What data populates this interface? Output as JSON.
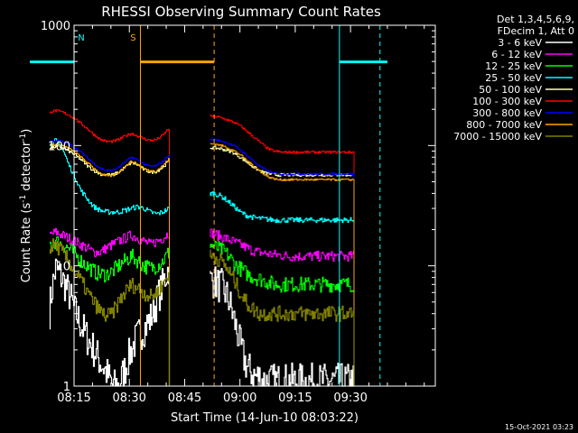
{
  "chart_data": {
    "type": "line",
    "title": "RHESSI Observing Summary Count Rates",
    "xlabel": "Start Time (14-Jun-10 08:03:22)",
    "ylabel_parts": [
      "Count Rate (s",
      "-1",
      " detector",
      "-1",
      ")"
    ],
    "yscale": "log",
    "ylim": [
      1,
      1000
    ],
    "y_ticks": [
      1,
      10,
      100,
      1000
    ],
    "y_tick_labels": [
      "1",
      "10",
      "100",
      "1000"
    ],
    "xlim_min": [
      495,
      593
    ],
    "x_ticks_min": [
      495,
      510,
      525,
      540,
      555,
      570
    ],
    "x_tick_labels": [
      "08:15",
      "08:30",
      "08:45",
      "09:00",
      "09:15",
      "09:30"
    ],
    "legend_header": [
      "Det 1,3,4,5,6,9,",
      "FDecim 1, Att 0"
    ],
    "footer_date": "15-Oct-2021 03:23",
    "segments_min": [
      [
        488.5,
        521
      ],
      [
        532,
        571
      ]
    ],
    "series": [
      {
        "name": "3 - 6 keV",
        "color": "#ffffff",
        "seg1": [
          4.2,
          9.5,
          7.8,
          6,
          4.2,
          3.2,
          2.5,
          2,
          1.6,
          1.3,
          1,
          1,
          1.4,
          2,
          2.6,
          3,
          3.6,
          5,
          7,
          10
        ],
        "seg2": [
          7.5,
          7.5,
          7,
          6.8,
          6,
          5.2,
          4,
          3,
          2.2,
          1.7,
          1.4,
          1.3,
          1.2,
          1.2,
          1.1,
          1.1,
          1.1,
          1.1,
          1.1,
          1.1,
          1.1,
          1.1,
          1.1,
          1.1,
          1.1,
          1.1,
          1.1,
          1.1,
          1.1,
          1.1,
          1.1,
          1.1,
          1.1,
          1.1,
          1.1,
          1.1,
          1.1,
          1.1,
          1.1
        ],
        "jitter": 0.35
      },
      {
        "name": "6 - 12 keV",
        "color": "#ff00ff",
        "seg1": [
          18,
          19,
          18,
          17,
          16,
          15,
          14,
          13,
          13,
          14,
          15,
          16,
          17,
          18,
          17,
          16,
          15,
          16,
          17,
          19
        ],
        "seg2": [
          19,
          18.5,
          18,
          17.5,
          17,
          16.5,
          16,
          15.5,
          15,
          14.5,
          14,
          13.5,
          13.2,
          13,
          12.8,
          12.6,
          12.5,
          12.4,
          12.3,
          12.2,
          12.1,
          12,
          12,
          12,
          12,
          12,
          12,
          12,
          12,
          12,
          12,
          12,
          12,
          12,
          12,
          12,
          12,
          12,
          12
        ],
        "jitter": 0.1
      },
      {
        "name": "12 - 25 keV",
        "color": "#00ff00",
        "seg1": [
          15,
          16,
          15,
          14,
          12.5,
          11,
          10,
          9,
          8.5,
          8.5,
          9,
          10,
          11,
          12,
          11,
          10,
          9.5,
          10,
          11,
          13
        ],
        "seg2": [
          15,
          14.5,
          14,
          13.5,
          13,
          12,
          11,
          10,
          9.5,
          9,
          8.5,
          8.2,
          8,
          7.8,
          7.6,
          7.4,
          7.2,
          7,
          7,
          7,
          7,
          7,
          7,
          7,
          7,
          7,
          7,
          7,
          7,
          7,
          7,
          7,
          7,
          7,
          7,
          7,
          7,
          7,
          7
        ],
        "jitter": 0.15
      },
      {
        "name": "25 - 50 keV",
        "color": "#00ffff",
        "seg1": [
          100,
          110,
          95,
          70,
          55,
          42,
          36,
          31,
          29,
          28,
          28,
          28,
          29,
          30,
          31,
          30,
          28,
          27,
          28,
          30
        ],
        "seg2": [
          40,
          40,
          39,
          38,
          36,
          34,
          32,
          30,
          28,
          27,
          26,
          25.5,
          25,
          24.8,
          24.6,
          24.4,
          24.2,
          24,
          24,
          24,
          24,
          24,
          24,
          24,
          24,
          24,
          24,
          24,
          24,
          24,
          24,
          24,
          24,
          24,
          24,
          24,
          24,
          24,
          24
        ],
        "jitter": 0.05
      },
      {
        "name": "50 - 100 keV",
        "color": "#ffffaa",
        "seg1": [
          95,
          98,
          96,
          90,
          84,
          76,
          68,
          62,
          58,
          57,
          57,
          60,
          66,
          72,
          69,
          63,
          60,
          61,
          66,
          75
        ],
        "seg2": [
          96,
          96,
          95,
          94,
          92,
          90,
          88,
          84,
          80,
          76,
          72,
          68,
          65,
          62,
          60,
          59,
          58,
          57,
          57,
          57,
          57,
          57,
          57,
          57,
          57,
          57,
          57,
          57,
          57,
          57,
          57,
          57,
          57,
          57,
          57,
          57,
          57,
          57,
          57
        ],
        "jitter": 0.03
      },
      {
        "name": "100 - 300 keV",
        "color": "#ff0000",
        "seg1": [
          190,
          195,
          190,
          180,
          168,
          152,
          138,
          124,
          113,
          108,
          108,
          112,
          120,
          126,
          120,
          114,
          110,
          112,
          122,
          140
        ],
        "seg2": [
          175,
          175,
          173,
          170,
          166,
          162,
          158,
          152,
          146,
          138,
          130,
          122,
          115,
          108,
          102,
          96,
          92,
          90,
          89,
          88,
          88,
          88,
          88,
          88,
          88,
          88,
          88,
          88,
          88,
          88,
          88,
          88,
          88,
          88,
          88,
          88,
          88,
          88,
          88
        ],
        "jitter": 0.025
      },
      {
        "name": "300 - 800 keV",
        "color": "#0000ff",
        "seg1": [
          108,
          110,
          108,
          103,
          96,
          88,
          79,
          71,
          65,
          62,
          62,
          66,
          73,
          80,
          76,
          70,
          67,
          68,
          74,
          84
        ],
        "seg2": [
          112,
          112,
          111,
          109,
          107,
          104,
          101,
          97,
          92,
          87,
          82,
          77,
          72,
          68,
          65,
          62,
          60,
          59,
          58,
          58,
          58,
          58,
          58,
          58,
          58,
          58,
          58,
          58,
          58,
          58,
          58,
          58,
          58,
          58,
          58,
          58,
          58,
          58,
          58
        ],
        "jitter": 0.02
      },
      {
        "name": "800 - 7000 keV",
        "color": "#ffa500",
        "seg1": [
          100,
          102,
          100,
          95,
          88,
          80,
          72,
          65,
          59,
          56,
          56,
          60,
          67,
          74,
          70,
          64,
          61,
          62,
          68,
          78
        ],
        "seg2": [
          103,
          103,
          102,
          100,
          98,
          95,
          92,
          88,
          84,
          79,
          74,
          70,
          66,
          62,
          59,
          56,
          54,
          53,
          52,
          52,
          52,
          52,
          52,
          52,
          52,
          52,
          52,
          52,
          52,
          52,
          52,
          52,
          52,
          52,
          52,
          52,
          52,
          52,
          52
        ],
        "jitter": 0.02
      },
      {
        "name": "7000 - 15000 keV",
        "color": "#808000",
        "seg1": [
          14,
          15,
          13,
          11,
          9,
          7.5,
          6,
          5,
          4.2,
          3.8,
          4,
          5,
          6,
          7,
          6.5,
          6,
          5.5,
          6,
          7,
          9
        ],
        "seg2": [
          12,
          12,
          11.5,
          11,
          10,
          9,
          8,
          7,
          6,
          5.3,
          4.8,
          4.5,
          4.2,
          4,
          4,
          4,
          4,
          4,
          4,
          4,
          4,
          4,
          4,
          4,
          4,
          4,
          4,
          4,
          4,
          4,
          4,
          4,
          4,
          4,
          4,
          4,
          4,
          4,
          4
        ],
        "jitter": 0.15
      }
    ],
    "annotations": [
      {
        "label": "N",
        "color": "#00ffff",
        "kind": "bar",
        "from_min": 483,
        "to_min": 495,
        "y": 700,
        "dash_at_min": 495
      },
      {
        "label": "S",
        "color": "#ffa500",
        "kind": "bar",
        "from_min": 513,
        "to_min": 533,
        "y": 700,
        "solid_at_min": 513,
        "dash_at_min": 533
      },
      {
        "label": "",
        "color": "#00ffff",
        "kind": "bar",
        "from_min": 567,
        "to_min": 580,
        "y": 700,
        "solid_at_min": 567,
        "dash_at_min": 578
      }
    ]
  }
}
